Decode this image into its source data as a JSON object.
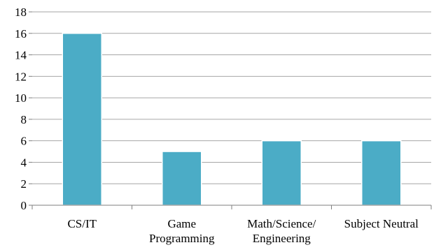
{
  "chart_data": {
    "type": "bar",
    "title": "",
    "xlabel": "",
    "ylabel": "",
    "categories": [
      [
        "CS/IT"
      ],
      [
        "Game",
        "Programming"
      ],
      [
        "Math/Science/",
        "Engineering"
      ],
      [
        "Subject Neutral"
      ]
    ],
    "values": [
      16,
      5,
      6,
      6
    ],
    "ylim": [
      0,
      18
    ],
    "yticks": [
      0,
      2,
      4,
      6,
      8,
      10,
      12,
      14,
      16,
      18
    ],
    "grid": true,
    "legend": "none",
    "colors": {
      "bar": "#4bacc6",
      "bar_outline": "#ffffff",
      "grid": "#a6a6a6",
      "axis": "#7f7f7f"
    }
  }
}
